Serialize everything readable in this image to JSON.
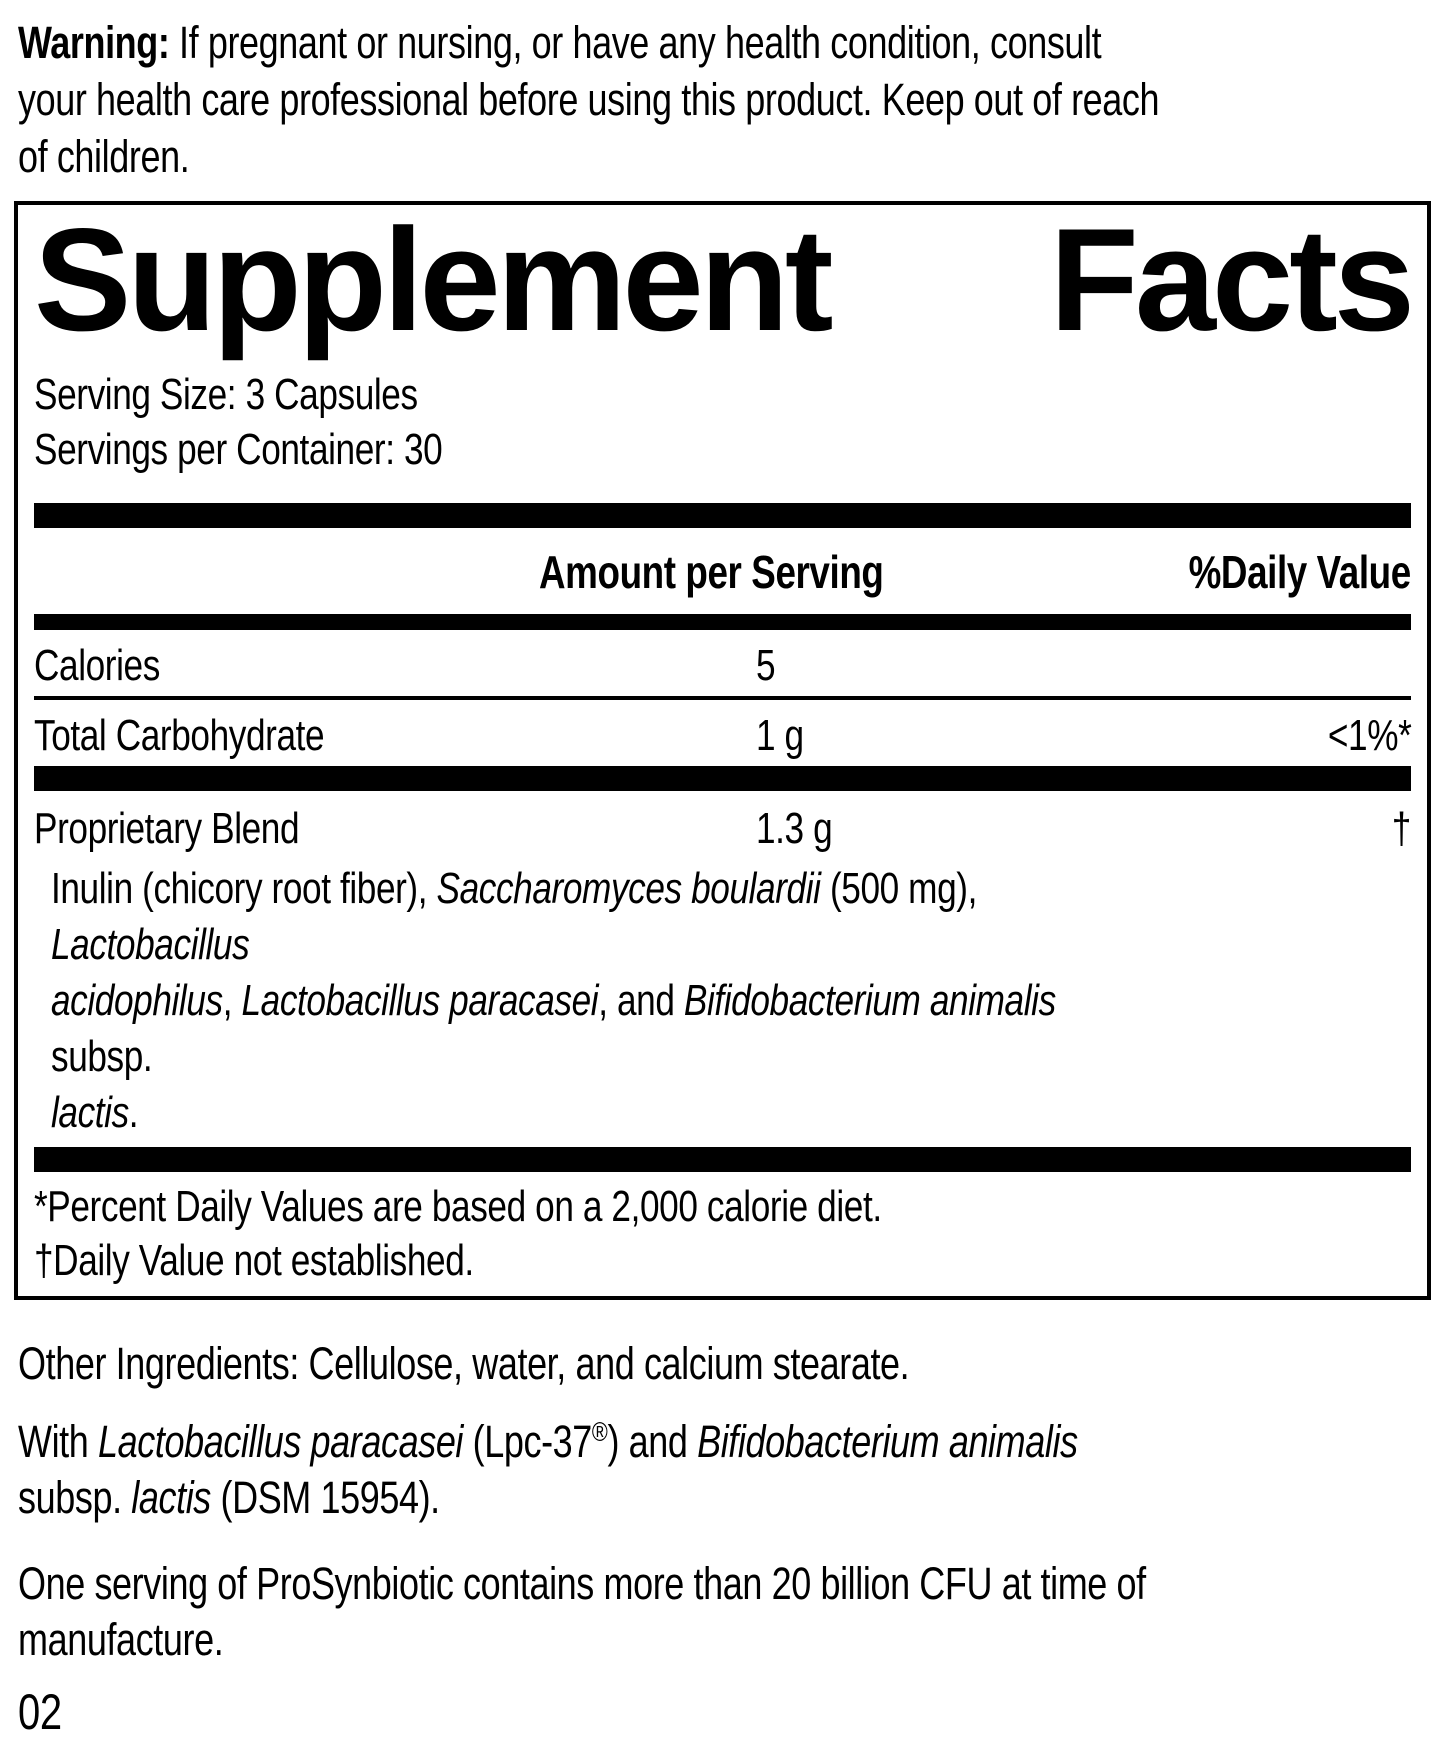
{
  "warning": {
    "segments": [
      {
        "t": "Warning:",
        "b": 1
      },
      {
        "t": " If pregnant or nursing, or have any health condition, consult\nyour health care professional before using this product. Keep out of reach\nof children."
      }
    ]
  },
  "panel": {
    "title_left": "Supplement",
    "title_right": "Facts",
    "serving_size": "Serving Size: 3 Capsules",
    "servings_per_container": "Servings per Container: 30",
    "columns": {
      "amount": "Amount per Serving",
      "daily_value": "%Daily Value"
    },
    "rows": [
      {
        "name": "Calories",
        "amount": "5",
        "dv": ""
      },
      {
        "name": "Total Carbohydrate",
        "amount": "1 g",
        "dv": "<1%*"
      },
      {
        "name": "Proprietary Blend",
        "amount": "1.3 g",
        "dv": "†"
      }
    ],
    "blend_details_segments": [
      {
        "t": "Inulin (chicory root fiber), "
      },
      {
        "t": "Saccharomyces boulardii",
        "i": 1
      },
      {
        "t": " (500 mg), "
      },
      {
        "t": "Lactobacillus\nacidophilus",
        "i": 1
      },
      {
        "t": ", "
      },
      {
        "t": "Lactobacillus paracasei",
        "i": 1
      },
      {
        "t": ", and "
      },
      {
        "t": "Bifidobacterium animalis",
        "i": 1
      },
      {
        "t": " subsp.\n"
      },
      {
        "t": "lactis",
        "i": 1
      },
      {
        "t": "."
      }
    ],
    "footnotes": [
      "*Percent Daily Values are based on a 2,000 calorie diet.",
      "†Daily Value not established."
    ]
  },
  "other_ingredients": "Other Ingredients: Cellulose, water, and calcium stearate.",
  "strain_note_segments": [
    {
      "t": "With "
    },
    {
      "t": "Lactobacillus paracasei",
      "i": 1
    },
    {
      "t": " (Lpc-37"
    },
    {
      "t": "®",
      "sup": 1
    },
    {
      "t": ") and "
    },
    {
      "t": "Bifidobacterium animalis",
      "i": 1
    },
    {
      "t": "\nsubsp. "
    },
    {
      "t": "lactis",
      "i": 1
    },
    {
      "t": " (DSM 15954)."
    }
  ],
  "cfu_note": "One serving of ProSynbiotic contains more than 20 billion CFU at time of\nmanufacture.",
  "page_number": "02"
}
